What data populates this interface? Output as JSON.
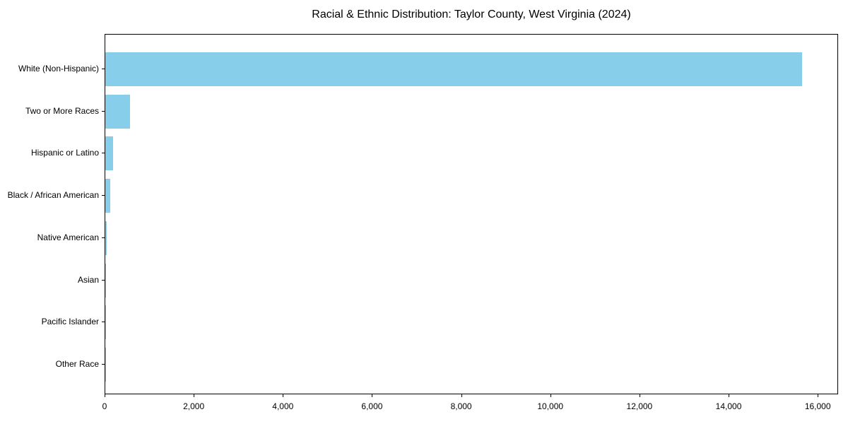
{
  "chart_data": {
    "type": "bar",
    "orientation": "horizontal",
    "title": "Racial & Ethnic Distribution: Taylor County, West Virginia (2024)",
    "categories": [
      "White (Non-Hispanic)",
      "Two or More Races",
      "Hispanic or Latino",
      "Black / African American",
      "Native American",
      "Asian",
      "Pacific Islander",
      "Other Race"
    ],
    "values": [
      15630,
      560,
      170,
      115,
      25,
      10,
      3,
      6
    ],
    "xlabel": "",
    "ylabel": "",
    "xlim": [
      0,
      16425
    ],
    "x_ticks": [
      0,
      2000,
      4000,
      6000,
      8000,
      10000,
      12000,
      14000,
      16000
    ],
    "x_tick_labels": [
      "0",
      "2,000",
      "4,000",
      "6,000",
      "8,000",
      "10,000",
      "12,000",
      "14,000",
      "16,000"
    ],
    "bar_color": "#87CEEB",
    "axis_color": "#000000",
    "background_color": "#ffffff",
    "grid": false,
    "legend": null
  }
}
